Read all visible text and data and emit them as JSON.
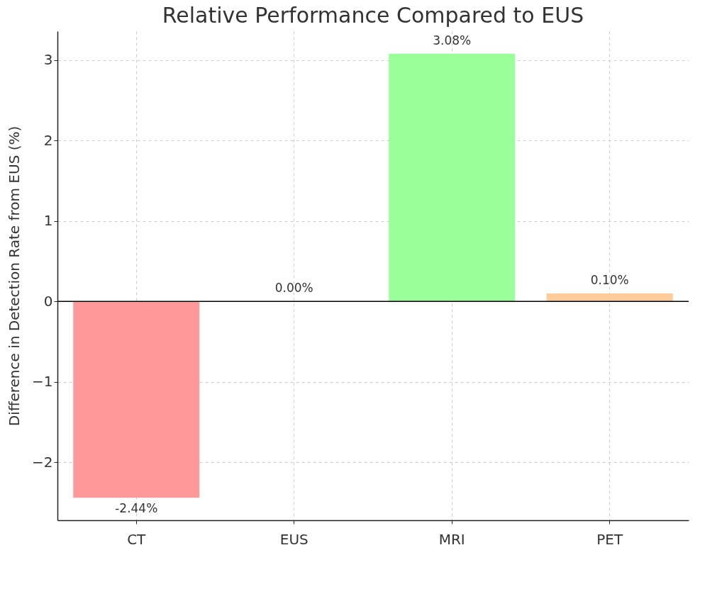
{
  "chart_data": {
    "type": "bar",
    "title": "Relative Performance Compared to EUS",
    "ylabel": "Difference in Detection Rate from EUS (%)",
    "categories": [
      "CT",
      "EUS",
      "MRI",
      "PET"
    ],
    "values": [
      -2.44,
      0.0,
      3.08,
      0.1
    ],
    "colors": [
      "#ff9999",
      "#66b3ff",
      "#99ff99",
      "#ffcc99"
    ],
    "value_labels": [
      "-2.44%",
      "0.00%",
      "3.08%",
      "0.10%"
    ],
    "ylim": [
      -2.72,
      3.36
    ],
    "yticks": [
      {
        "value": -2,
        "label": "−2"
      },
      {
        "value": -1,
        "label": "−1"
      },
      0,
      1,
      2,
      3
    ],
    "ref_lines": [
      {
        "axis": "y",
        "value": 0,
        "color": "#000000"
      }
    ],
    "grid": true
  }
}
